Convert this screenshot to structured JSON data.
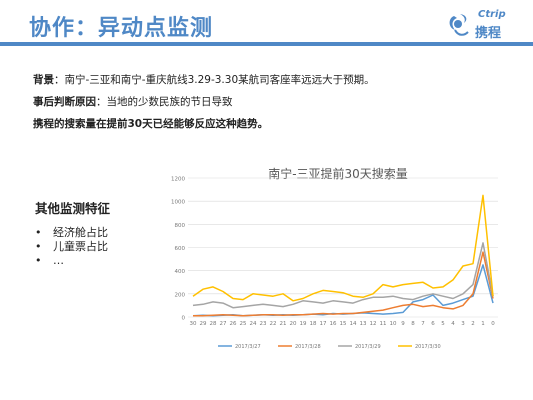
{
  "slide": {
    "title": "协作：异动点监测",
    "logo_en": "Ctrip",
    "logo_cn": "携程",
    "background_label": "背景",
    "background_text": "：南宁-三亚和南宁-重庆航线3.29-3.30某航司客座率远远大于预期。",
    "cause_label": "事后判断原因",
    "cause_text": "：当地的少数民族的节日导致",
    "conclusion": "携程的搜索量在提前30天已经能够反应这种趋势。",
    "side_title": "其他监测特征",
    "side_items": [
      "经济舱占比",
      "儿童票占比",
      "…"
    ]
  },
  "colors": {
    "accent": "#4f88c6",
    "series": [
      "#5b9bd5",
      "#ed7d31",
      "#a5a5a5",
      "#ffc000"
    ],
    "grid": "#d9d9d9"
  },
  "chart_data": {
    "type": "line",
    "title": "南宁-三亚提前30天搜索量",
    "xlabel": "",
    "ylabel": "",
    "categories": [
      "30",
      "29",
      "28",
      "27",
      "26",
      "25",
      "24",
      "23",
      "22",
      "21",
      "20",
      "19",
      "18",
      "17",
      "16",
      "15",
      "14",
      "13",
      "12",
      "11",
      "10",
      "9",
      "8",
      "7",
      "6",
      "5",
      "4",
      "3",
      "2",
      "1",
      "0"
    ],
    "ylim": [
      0,
      1200
    ],
    "yticks": [
      0,
      200,
      400,
      600,
      800,
      1000,
      1200
    ],
    "grid": true,
    "legend_position": "bottom",
    "series": [
      {
        "name": "2017/3/27",
        "values": [
          10,
          15,
          10,
          15,
          20,
          10,
          15,
          20,
          15,
          20,
          15,
          20,
          25,
          20,
          30,
          25,
          30,
          35,
          30,
          25,
          30,
          40,
          130,
          150,
          190,
          100,
          120,
          150,
          180,
          450,
          120
        ]
      },
      {
        "name": "2017/3/28",
        "values": [
          10,
          10,
          15,
          20,
          15,
          10,
          15,
          20,
          20,
          15,
          20,
          20,
          25,
          30,
          25,
          30,
          30,
          40,
          50,
          60,
          80,
          100,
          110,
          90,
          100,
          80,
          70,
          100,
          200,
          560,
          160
        ]
      },
      {
        "name": "2017/3/29",
        "values": [
          100,
          110,
          130,
          120,
          80,
          90,
          100,
          110,
          100,
          90,
          110,
          140,
          130,
          120,
          140,
          130,
          120,
          150,
          170,
          170,
          180,
          160,
          150,
          180,
          200,
          180,
          160,
          200,
          280,
          640,
          180
        ]
      },
      {
        "name": "2017/3/30",
        "values": [
          180,
          240,
          260,
          220,
          160,
          150,
          200,
          190,
          180,
          200,
          140,
          160,
          200,
          230,
          220,
          210,
          180,
          170,
          200,
          280,
          260,
          280,
          290,
          300,
          250,
          260,
          320,
          440,
          460,
          1050,
          180
        ]
      }
    ]
  }
}
